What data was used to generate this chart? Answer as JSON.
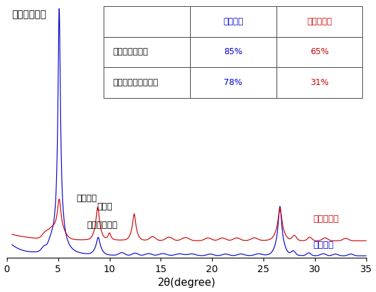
{
  "xlabel": "2θ(degree)",
  "xlim": [
    0,
    35
  ],
  "ylim": [
    0,
    3.6
  ],
  "blue_color": "#0000cc",
  "red_color": "#cc0000",
  "blue_label": "日本海溝",
  "red_label": "南海トラフ",
  "ann_smectite": "スメクタイト",
  "ann_illite": "イライト",
  "ann_chlorite": "緑泥石",
  "ann_kaolinite": "カオリナイト",
  "tbl_col1": "日本海溝",
  "tbl_col2": "南海トラフ",
  "tbl_row1_label": "粘土鉱物の割合",
  "tbl_row1_v1": "85%",
  "tbl_row1_v2": "65%",
  "tbl_row2_label": "スメクタイトの割合",
  "tbl_row2_v1": "78%",
  "tbl_row2_v2": "31%"
}
